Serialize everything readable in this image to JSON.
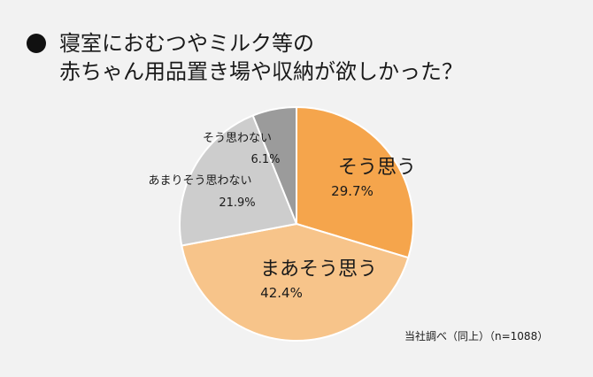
{
  "title": {
    "line1": "寝室におむつやミルク等の",
    "line2": "赤ちゃん用品置き場や収納が欲しかった？"
  },
  "source_note": "当社調べ（同上）（n=1088）",
  "chart_data": {
    "type": "pie",
    "title": "寝室におむつやミルク等の赤ちゃん用品置き場や収納が欲しかった？",
    "start": "12 o'clock, clockwise",
    "slices": [
      {
        "label": "そう思う",
        "value": 29.7,
        "display": "29.7%",
        "color": "#f5a54c"
      },
      {
        "label": "まあそう思う",
        "value": 42.4,
        "display": "42.4%",
        "color": "#f7c48a"
      },
      {
        "label": "あまりそう思わない",
        "value": 21.9,
        "display": "21.9%",
        "color": "#cdcdcd"
      },
      {
        "label": "そう思わない",
        "value": 6.1,
        "display": "6.1%",
        "color": "#9b9b9b"
      }
    ]
  }
}
